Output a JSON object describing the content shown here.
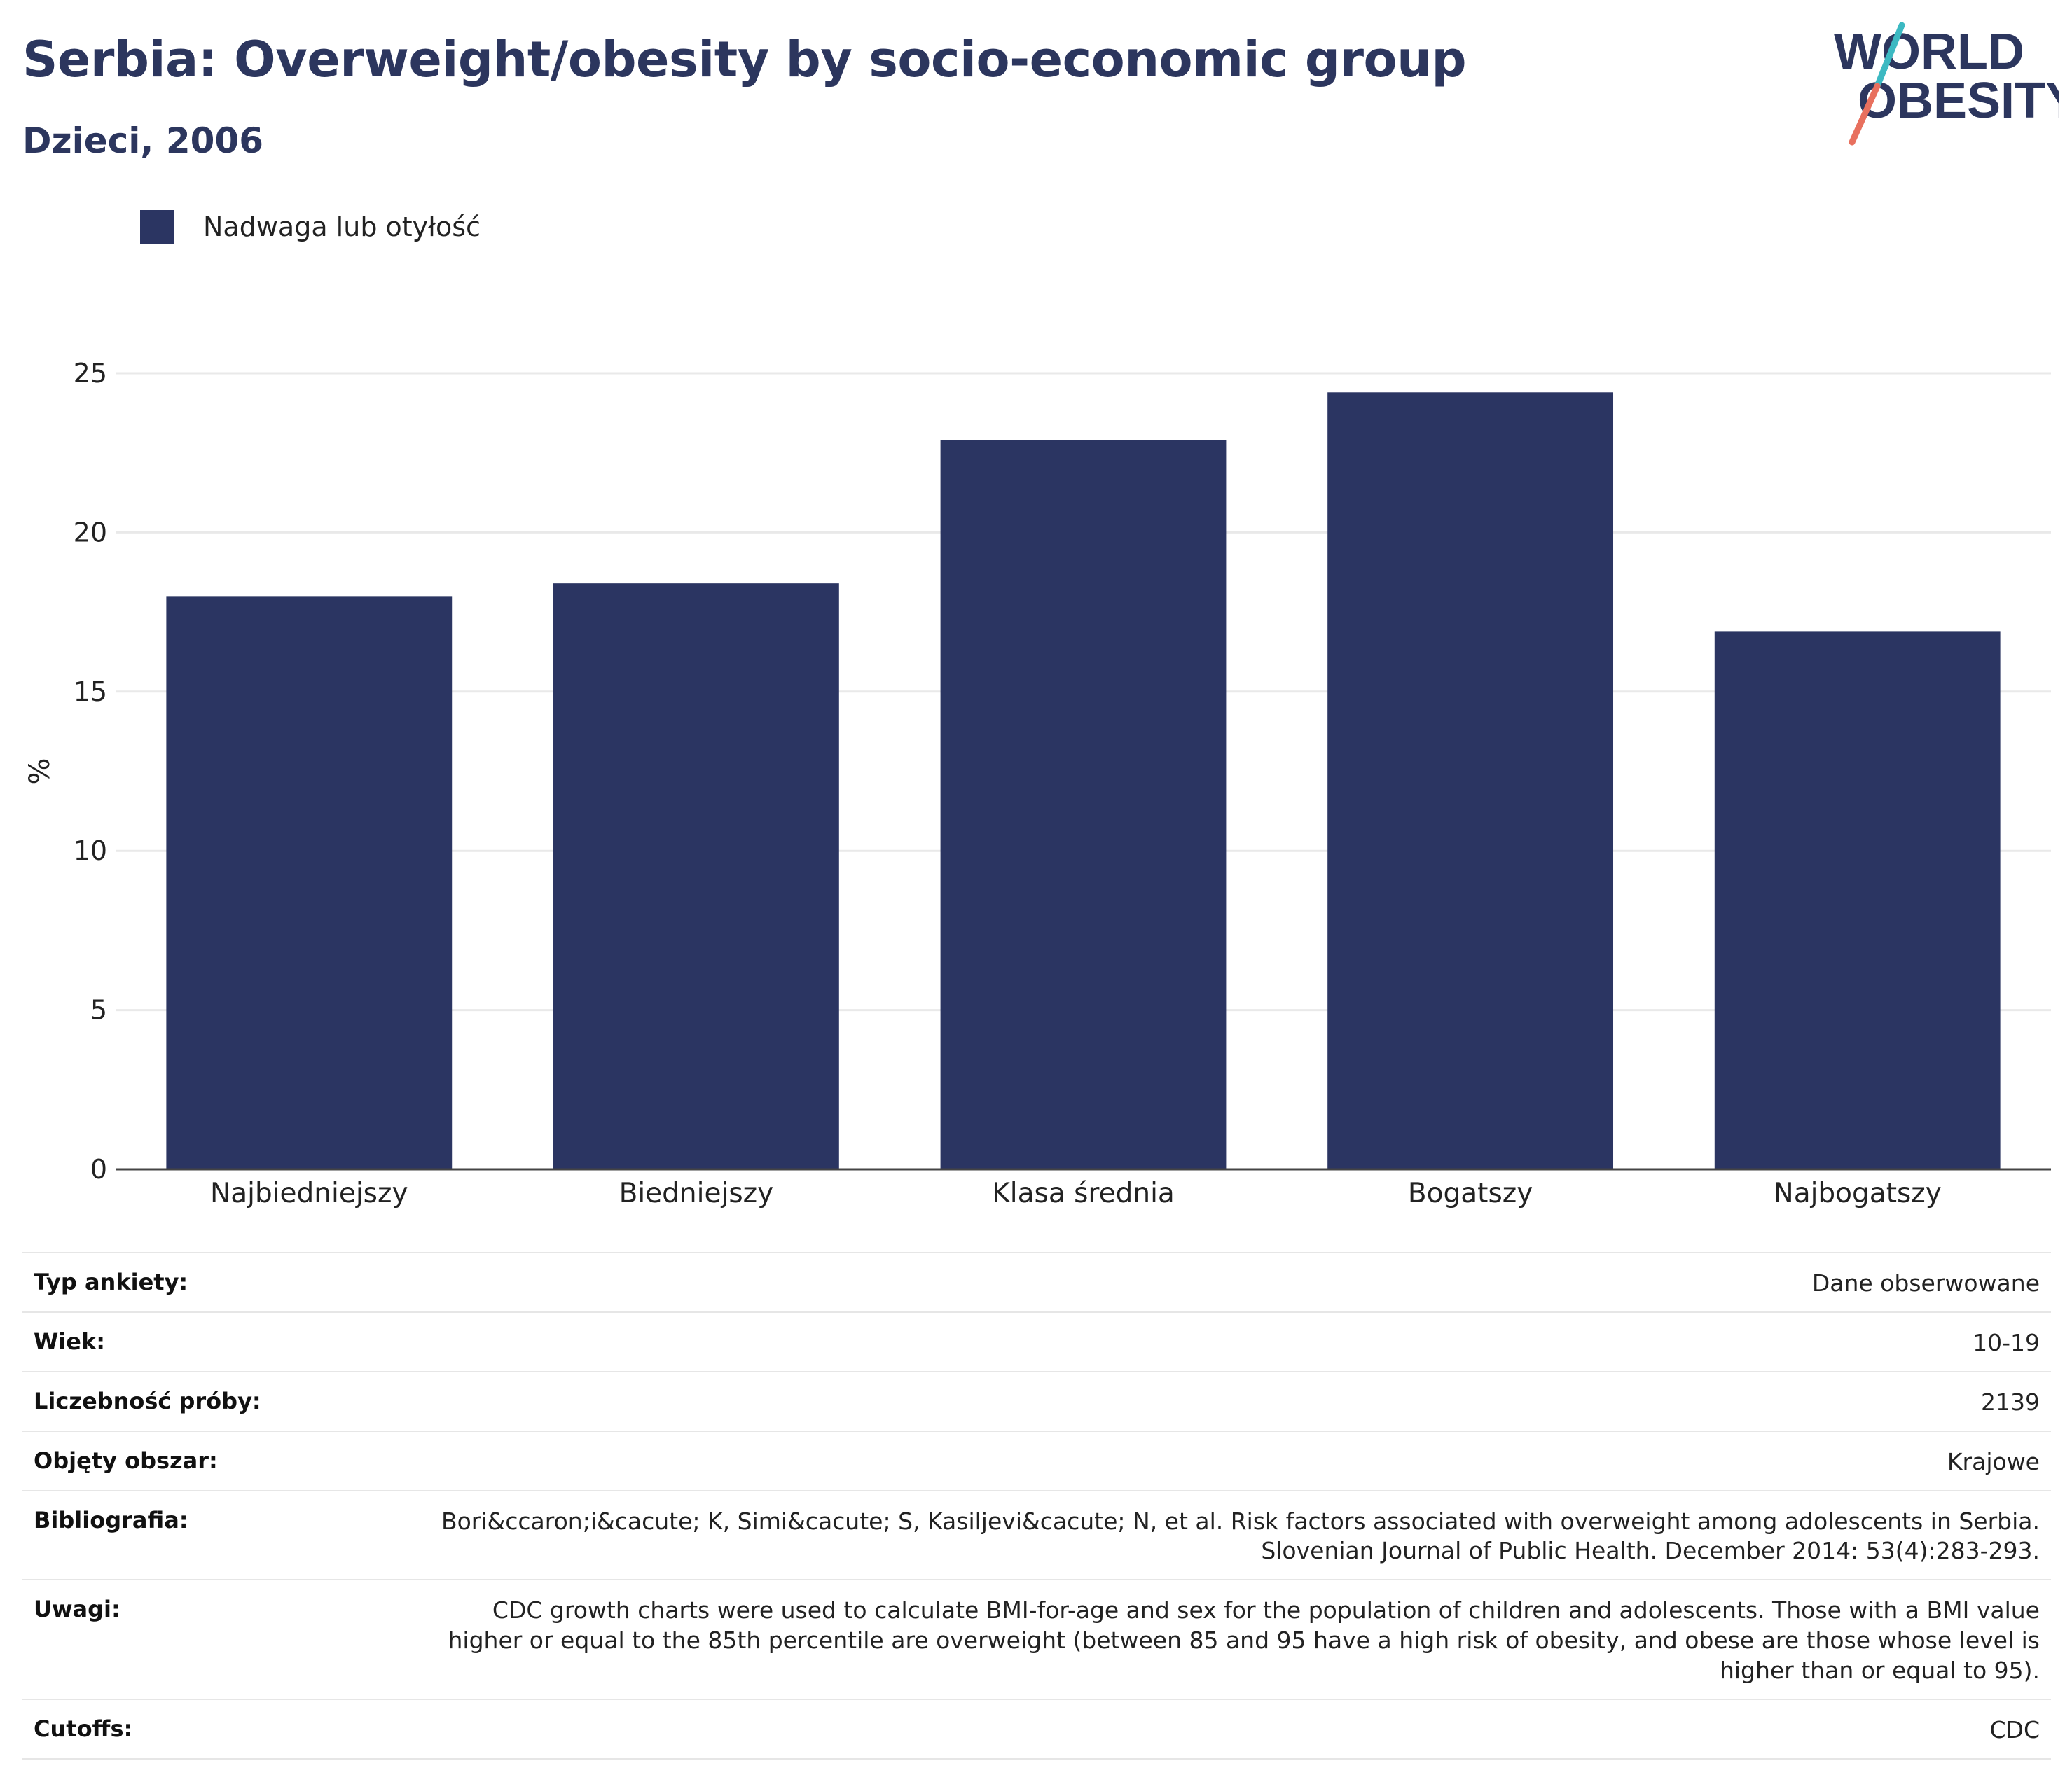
{
  "header": {
    "title": "Serbia: Overweight/obesity by socio-economic group",
    "subtitle": "Dzieci, 2006"
  },
  "logo": {
    "line1": "WORLD",
    "line2": "OBESITY",
    "colors": {
      "text": "#2c365e",
      "slash_top": "#3cb9c2",
      "slash_bottom": "#e8705e"
    }
  },
  "legend": {
    "label": "Nadwaga lub otyłość",
    "color": "#2b3562"
  },
  "chart_data": {
    "type": "bar",
    "categories": [
      "Najbiedniejszy",
      "Biedniejszy",
      "Klasa średnia",
      "Bogatszy",
      "Najbogatszy"
    ],
    "series": [
      {
        "name": "Nadwaga lub otyłość",
        "values": [
          18.0,
          18.4,
          22.9,
          24.4,
          16.9
        ]
      }
    ],
    "ylabel": "%",
    "ylim": [
      0,
      25
    ],
    "yticks": [
      0,
      5,
      10,
      15,
      20,
      25
    ],
    "grid": true,
    "legend_position": "top-left",
    "bar_color": "#2b3562"
  },
  "info": [
    {
      "label": "Typ ankiety:",
      "value": "Dane obserwowane"
    },
    {
      "label": "Wiek:",
      "value": "10-19"
    },
    {
      "label": "Liczebność próby:",
      "value": "2139"
    },
    {
      "label": "Objęty obszar:",
      "value": "Krajowe"
    },
    {
      "label": "Bibliografia:",
      "value": "Bori&ccaron;i&cacute; K, Simi&cacute; S, Kasiljevi&cacute; N, et al. Risk factors associated with overweight among adolescents in Serbia. Slovenian Journal of Public Health. December 2014: 53(4):283-293."
    },
    {
      "label": "Uwagi:",
      "value": "CDC growth charts were used to calculate BMI-for-age and sex for the population of children and adolescents. Those with a BMI value higher or equal to the 85th percentile are overweight (between 85 and 95 have a high risk of obesity, and obese are those whose level is higher than or equal to 95)."
    },
    {
      "label": "Cutoffs:",
      "value": "CDC"
    }
  ]
}
